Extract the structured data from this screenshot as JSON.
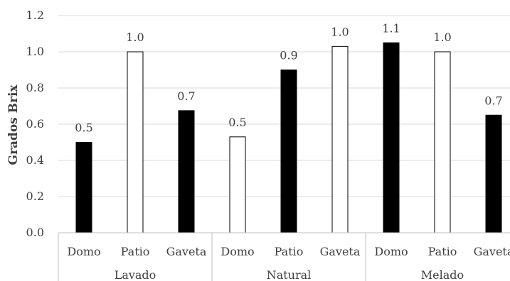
{
  "chart_data": {
    "type": "bar",
    "ylabel": "Grados Brix",
    "xlabel": "",
    "ylim": [
      0,
      1.2
    ],
    "yticks": [
      "0.0",
      "0.2",
      "0.4",
      "0.6",
      "0.8",
      "1.0",
      "1.2"
    ],
    "grid": true,
    "groups": [
      {
        "name": "Lavado",
        "bars": [
          {
            "category": "Domo",
            "value": 0.5,
            "label": "0.5",
            "fill": "#000000"
          },
          {
            "category": "Patio",
            "value": 1.0,
            "label": "1.0",
            "fill": "#ffffff"
          },
          {
            "category": "Gaveta",
            "value": 0.675,
            "label": "0.7",
            "fill": "#000000"
          }
        ]
      },
      {
        "name": "Natural",
        "bars": [
          {
            "category": "Domo",
            "value": 0.53,
            "label": "0.5",
            "fill": "#ffffff"
          },
          {
            "category": "Patio",
            "value": 0.9,
            "label": "0.9",
            "fill": "#000000"
          },
          {
            "category": "Gaveta",
            "value": 1.03,
            "label": "1.0",
            "fill": "#ffffff"
          }
        ]
      },
      {
        "name": "Melado",
        "bars": [
          {
            "category": "Domo",
            "value": 1.05,
            "label": "1.1",
            "fill": "#000000"
          },
          {
            "category": "Patio",
            "value": 1.0,
            "label": "1.0",
            "fill": "#ffffff"
          },
          {
            "category": "Gaveta",
            "value": 0.65,
            "label": "0.7",
            "fill": "#000000"
          }
        ]
      }
    ],
    "colors": {
      "grid": "#d9d9d9",
      "axis": "#bfbfbf",
      "bar_stroke": "#000000"
    }
  }
}
